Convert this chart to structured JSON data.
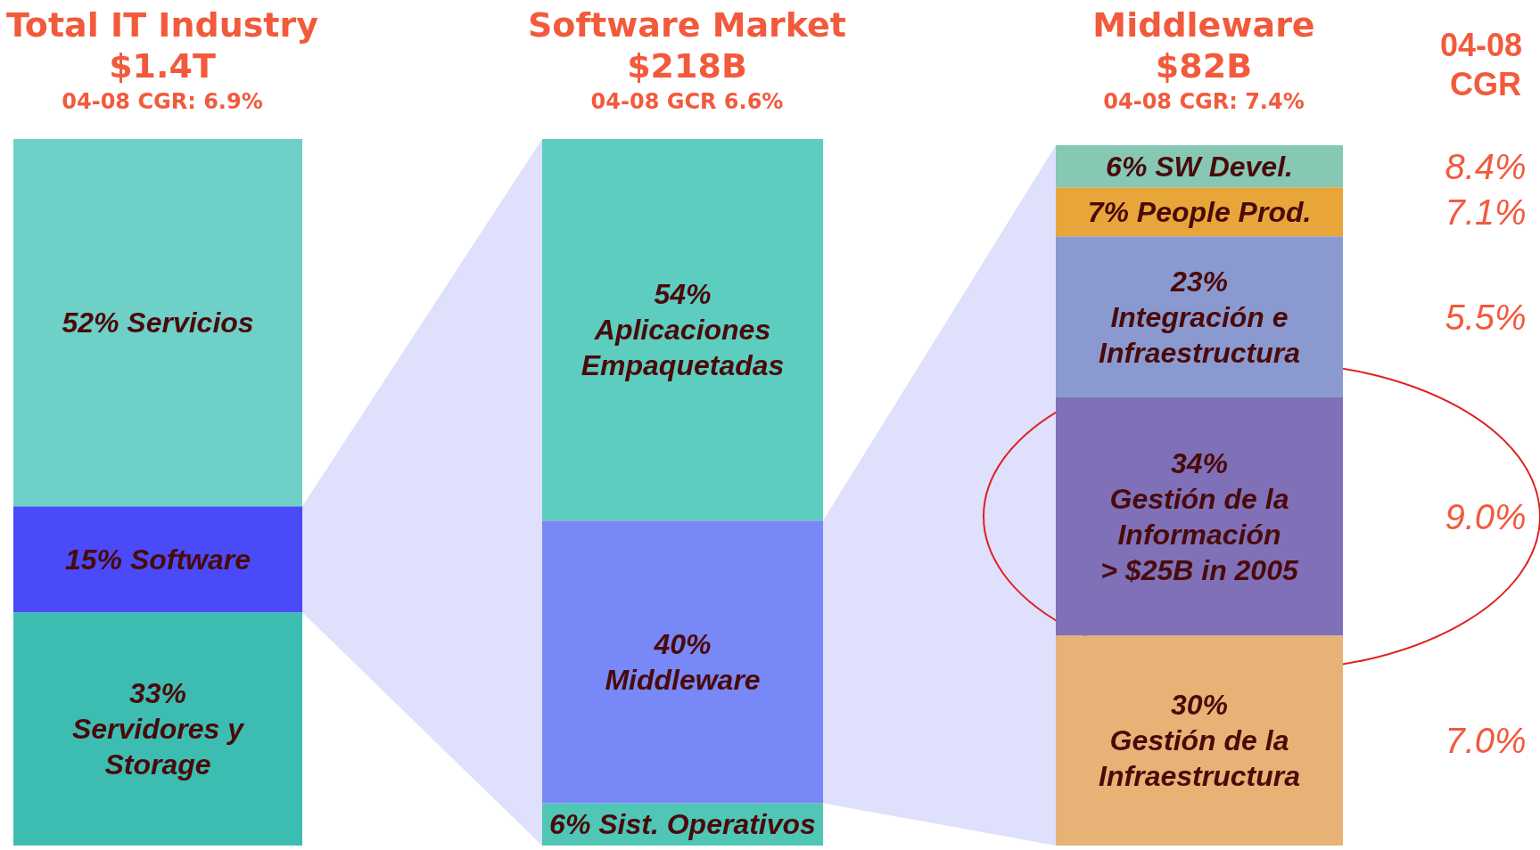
{
  "chart_data": [
    {
      "type": "bar",
      "title": "Total IT Industry",
      "subtitle": "$1.4T\n04-08 CGR: 6.9%",
      "categories": [
        null
      ],
      "stacked": true,
      "series": [
        {
          "color": "#3dbdb2",
          "values": [
            33
          ],
          "value_labels": [
            "33%\nServidores y\nStorage"
          ]
        },
        {
          "color": "#4a4af8",
          "values": [
            15
          ],
          "value_labels": [
            "15% Software"
          ]
        },
        {
          "color": "#6fd0c8",
          "values": [
            52
          ],
          "value_labels": [
            "52% Servicios"
          ]
        }
      ]
    },
    {
      "type": "bar",
      "title": "Software Market",
      "subtitle": "$218B\n04-08 GCR 6.6%",
      "categories": [
        null
      ],
      "stacked": true,
      "series": [
        {
          "color": "#4fc6b6",
          "values": [
            6
          ],
          "value_labels": [
            "6% Sist. Operativos"
          ]
        },
        {
          "color": "#7888f6",
          "values": [
            40
          ],
          "value_labels": [
            "40%\nMiddleware"
          ]
        },
        {
          "color": "#5ccdbf",
          "values": [
            54
          ],
          "value_labels": [
            "54%\nAplicaciones\nEmpaquetadas"
          ]
        }
      ]
    },
    {
      "type": "bar",
      "title": "Middleware",
      "subtitle": "$82B\n04-08 CGR: 7.4%",
      "categories": [
        null
      ],
      "stacked": true,
      "series": [
        {
          "color": "#e6b276",
          "values": [
            30
          ],
          "value_labels": [
            "30%\nGestión de la\nInfraestructura"
          ]
        },
        {
          "color": "#8070b8",
          "values": [
            34
          ],
          "value_labels": [
            "34%\nGestión de la\nInformación\n> $25B in 2005"
          ]
        },
        {
          "color": "#8a9ad0",
          "values": [
            23
          ],
          "value_labels": [
            "23%\nIntegración e\nInfraestructura"
          ]
        },
        {
          "color": "#e8a63a",
          "values": [
            7
          ],
          "value_labels": [
            "7% People Prod."
          ]
        },
        {
          "color": "#86c8b4",
          "values": [
            6
          ],
          "value_labels": [
            "6% SW Devel."
          ]
        }
      ],
      "annotations": [
        "04-08 CGR",
        "8.4%",
        "7.1%",
        "5.5%",
        "9.0%",
        "7.0%"
      ]
    }
  ]
}
